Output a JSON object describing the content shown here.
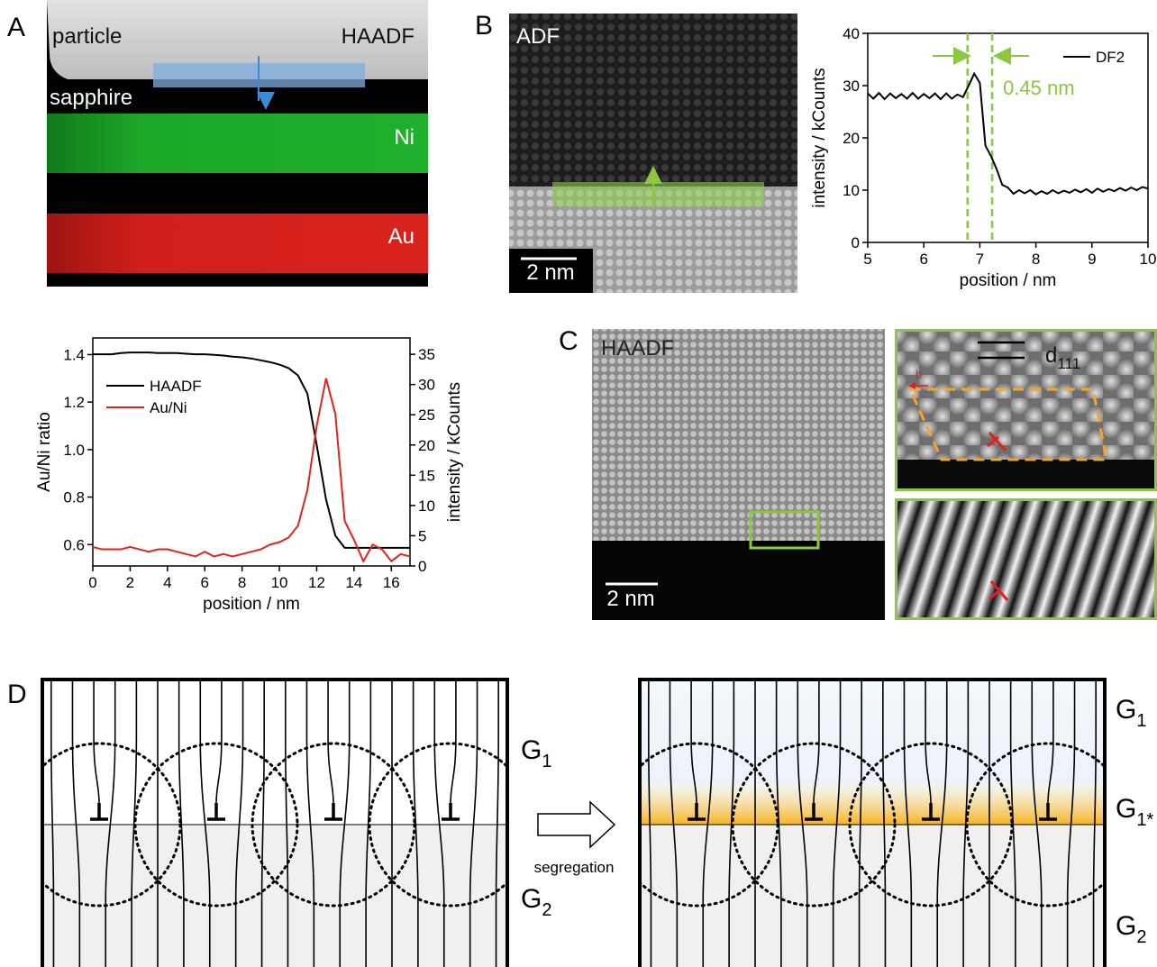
{
  "panel_labels": [
    "A",
    "B",
    "C",
    "D"
  ],
  "panel_a": {
    "image_labels": [
      "particle",
      "HAADF",
      "sapphire",
      "Ni",
      "Au"
    ]
  },
  "panel_b": {
    "image_label": "ADF",
    "scale_bar": "2 nm"
  },
  "panel_c": {
    "image_label": "HAADF",
    "scale_bar": "2 nm",
    "spacing_label": {
      "letter": "d",
      "sub": "111"
    },
    "burgers_label": "b"
  },
  "panel_d": {
    "arrow_label": "segregation",
    "left_grains": [
      {
        "letter": "G",
        "sub": "1"
      },
      {
        "letter": "G",
        "sub": "2"
      }
    ],
    "right_grains": [
      {
        "letter": "G",
        "sub": "1"
      },
      {
        "letter": "G",
        "sub": "1*"
      },
      {
        "letter": "G",
        "sub": "2"
      }
    ]
  },
  "chart_data": [
    {
      "type": "line",
      "x": [
        0,
        0.5,
        1,
        1.5,
        2,
        2.5,
        3,
        3.5,
        4,
        4.5,
        5,
        5.5,
        6,
        6.5,
        7,
        7.5,
        8,
        8.5,
        9,
        9.5,
        10,
        10.5,
        11,
        11.5,
        12,
        12.5,
        13,
        13.5,
        14,
        14.5,
        15,
        15.5,
        16,
        16.5,
        17
      ],
      "series": [
        {
          "name": "HAADF",
          "color": "#000000",
          "axis": "y2",
          "values": [
            35,
            35,
            35,
            35.2,
            35.3,
            35.3,
            35.3,
            35.2,
            35.2,
            35.2,
            35.1,
            35,
            35,
            34.9,
            34.8,
            34.6,
            34.5,
            34.3,
            34,
            33.7,
            33.3,
            32.7,
            31.5,
            28.5,
            20,
            11,
            5,
            3,
            3,
            3,
            3,
            3,
            3,
            3,
            3
          ]
        },
        {
          "name": "Au/Ni",
          "color": "#e8201a",
          "values": [
            0.59,
            0.58,
            0.58,
            0.58,
            0.59,
            0.58,
            0.57,
            0.58,
            0.58,
            0.57,
            0.56,
            0.55,
            0.57,
            0.55,
            0.56,
            0.55,
            0.56,
            0.57,
            0.58,
            0.6,
            0.61,
            0.63,
            0.68,
            0.83,
            1.1,
            1.3,
            1.15,
            0.7,
            0.62,
            0.53,
            0.6,
            0.58,
            0.53,
            0.56,
            0.55
          ]
        }
      ],
      "xlim": [
        0,
        17
      ],
      "xticks": [
        0,
        2,
        4,
        6,
        8,
        10,
        12,
        14,
        16
      ],
      "ylim": [
        0.51,
        1.47
      ],
      "yticks": [
        0.6,
        0.8,
        {
          "value": 1,
          "label": "1.0"
        },
        1.2,
        1.4
      ],
      "y2lim": [
        0,
        37.7
      ],
      "y2ticks": [
        0,
        5,
        10,
        15,
        20,
        25,
        30,
        35
      ],
      "xlabel": "position / nm",
      "ylabel": "Au/Ni ratio",
      "y2label": "intensity  / kCounts"
    },
    {
      "type": "line",
      "x": [
        5,
        5.1,
        5.2,
        5.3,
        5.4,
        5.5,
        5.6,
        5.7,
        5.8,
        5.9,
        6,
        6.1,
        6.2,
        6.3,
        6.4,
        6.5,
        6.6,
        6.7,
        6.8,
        6.9,
        7,
        7.1,
        7.2,
        7.3,
        7.4,
        7.5,
        7.6,
        7.7,
        7.8,
        7.9,
        8,
        8.1,
        8.2,
        8.3,
        8.4,
        8.5,
        8.6,
        8.7,
        8.8,
        8.9,
        9,
        9.1,
        9.2,
        9.3,
        9.4,
        9.5,
        9.6,
        9.7,
        9.8,
        9.9,
        10
      ],
      "series": [
        {
          "name": "DF2",
          "color": "#000000",
          "values": [
            28.5,
            27.5,
            28.6,
            27.4,
            28.5,
            27.6,
            28.4,
            27.5,
            28.6,
            27.5,
            28.4,
            27.6,
            28.5,
            27.4,
            28.5,
            27.5,
            28.3,
            27.8,
            30,
            32.3,
            30.5,
            18.5,
            16.5,
            14,
            11,
            10.5,
            9.3,
            10,
            9.4,
            10,
            9.2,
            9.8,
            9.3,
            10,
            9.4,
            9.9,
            9.5,
            10.1,
            9.6,
            10.2,
            9.5,
            10.3,
            9.7,
            10.2,
            9.8,
            10.4,
            9.9,
            10.5,
            10,
            10.6,
            10.3
          ]
        }
      ],
      "xlim": [
        5,
        10
      ],
      "xticks": [
        5,
        6,
        7,
        8,
        9,
        10
      ],
      "ylim": [
        0,
        40
      ],
      "yticks": [
        0,
        10,
        20,
        30,
        40
      ],
      "vlines": [
        6.78,
        7.22
      ],
      "marker_color": "#8dc63f",
      "annotation": "0.45 nm",
      "xlabel": "position / nm",
      "ylabel": "intensity / kCounts"
    }
  ]
}
